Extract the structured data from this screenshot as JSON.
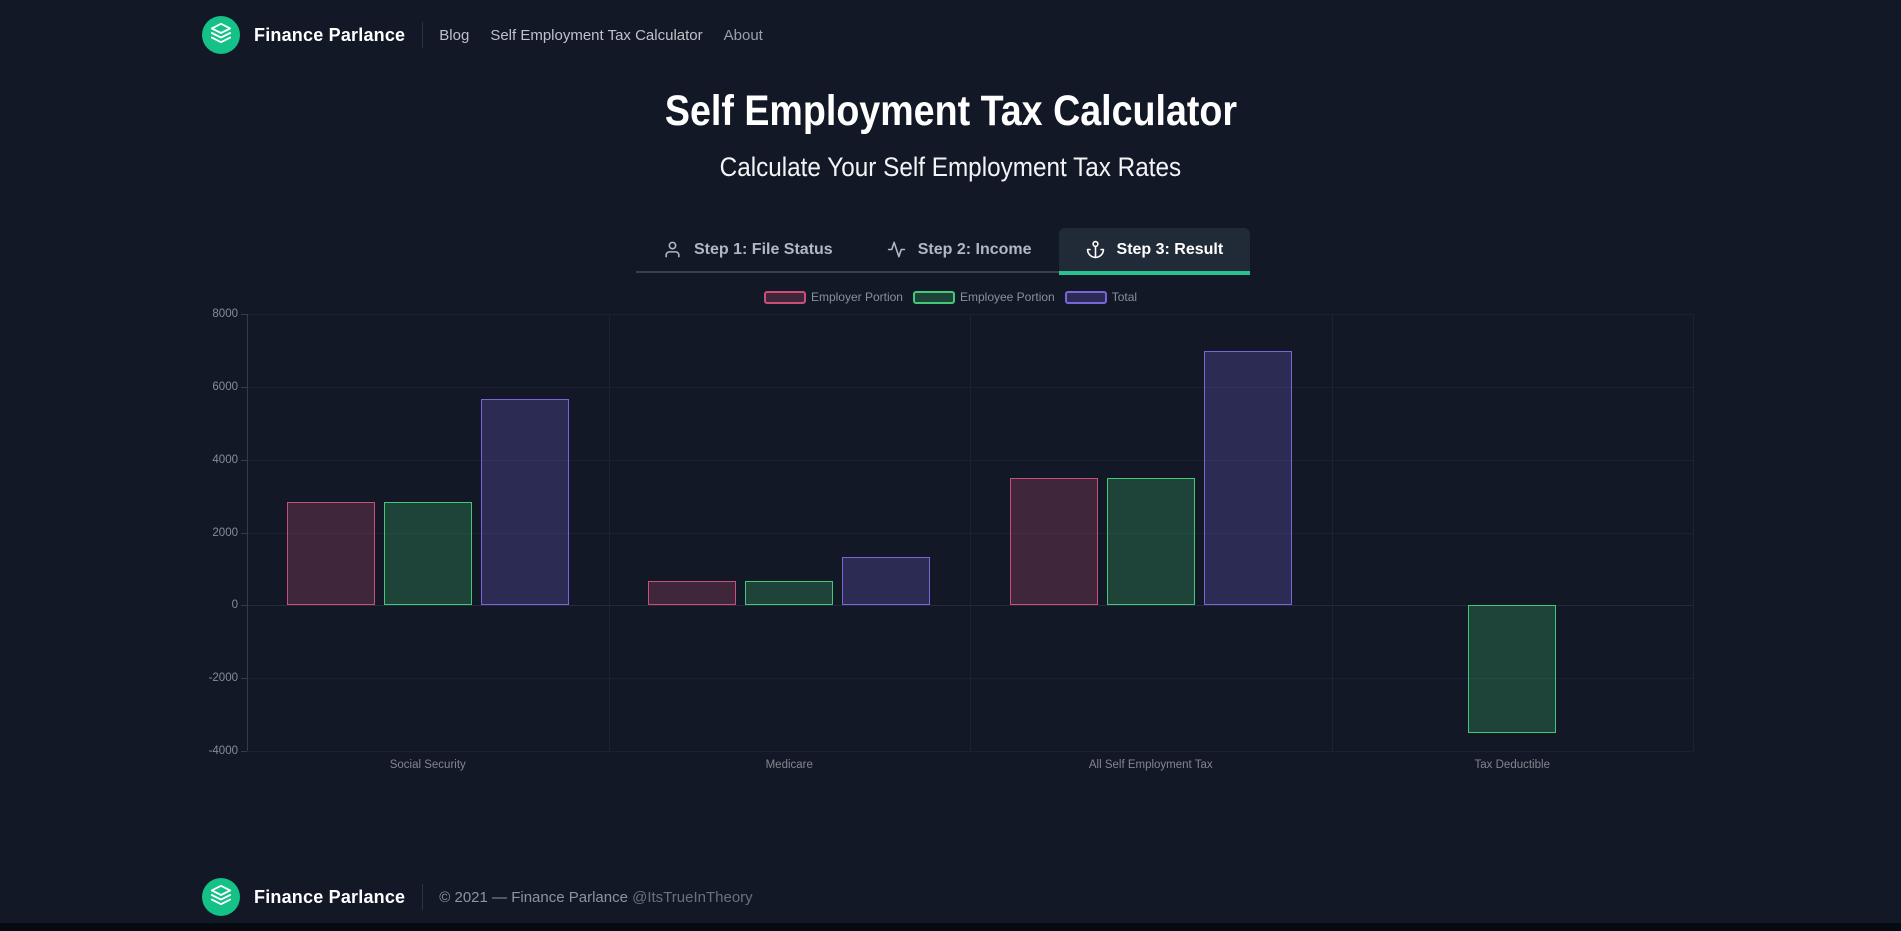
{
  "brand": {
    "name": "Finance Parlance",
    "logo_icon": "layers-icon",
    "logo_color": "#14c186"
  },
  "nav": [
    {
      "label": "Blog"
    },
    {
      "label": "Self Employment Tax Calculator"
    },
    {
      "label": "About"
    }
  ],
  "hero": {
    "title": "Self Employment Tax Calculator",
    "subtitle": "Calculate Your Self Employment Tax Rates"
  },
  "tabs": [
    {
      "label": "Step 1: File Status",
      "icon": "user-icon",
      "active": false
    },
    {
      "label": "Step 2: Income",
      "icon": "activity-icon",
      "active": false
    },
    {
      "label": "Step 3: Result",
      "icon": "anchor-icon",
      "active": true
    }
  ],
  "chart_data": {
    "type": "bar",
    "categories": [
      "Social Security",
      "Medicare",
      "All Self Employment Tax",
      "Tax Deductible"
    ],
    "series": [
      {
        "name": "Employer Portion",
        "color": "#c94f78",
        "values": [
          2831,
          662,
          3493,
          0
        ]
      },
      {
        "name": "Employee Portion",
        "color": "#43c878",
        "values": [
          2831,
          662,
          3493,
          -3493
        ]
      },
      {
        "name": "Total",
        "color": "#7b63da",
        "values": [
          5662,
          1324,
          6986,
          0
        ]
      }
    ],
    "ylim": [
      -4000,
      8000
    ],
    "ytick_step": 2000,
    "legend_position": "top",
    "grid": true
  },
  "footer": {
    "brand": "Finance Parlance",
    "copyright": "© 2021 — Finance Parlance",
    "handle": "@ItsTrueInTheory"
  },
  "colors": {
    "background": "#121826",
    "active_tab_bg": "#212a37",
    "accent_teal": "#2cc28f",
    "logo_green": "#14c186"
  }
}
